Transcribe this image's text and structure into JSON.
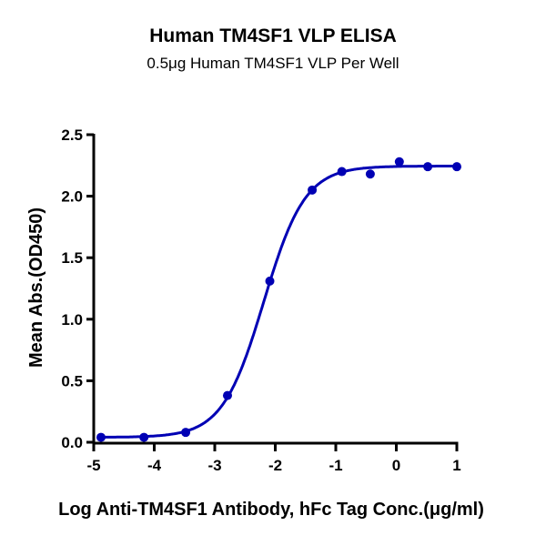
{
  "chart_data": {
    "type": "scatter",
    "title": "Human TM4SF1 VLP ELISA",
    "subtitle": "0.5μg Human TM4SF1 VLP Per Well",
    "xlabel": "Log Anti-TM4SF1 Antibody, hFc Tag Conc.(μg/ml)",
    "ylabel": "Mean Abs.(OD450)",
    "xlim": [
      -5,
      1
    ],
    "ylim": [
      0,
      2.5
    ],
    "xticks": [
      "-5",
      "-4",
      "-3",
      "-2",
      "-1",
      "0",
      "1"
    ],
    "yticks": [
      "0.0",
      "0.5",
      "1.0",
      "1.5",
      "2.0",
      "2.5"
    ],
    "grid": false,
    "fit_curve": "sigmoidal",
    "color": "#0000b4",
    "series": [
      {
        "x": [
          -4.88,
          -4.17,
          -3.48,
          -2.79,
          -2.09,
          -1.39,
          -0.9,
          -0.43,
          0.05,
          0.52,
          1.0
        ],
        "y": [
          0.04,
          0.04,
          0.08,
          0.38,
          1.31,
          2.05,
          2.2,
          2.18,
          2.28,
          2.24,
          2.24
        ]
      }
    ]
  }
}
